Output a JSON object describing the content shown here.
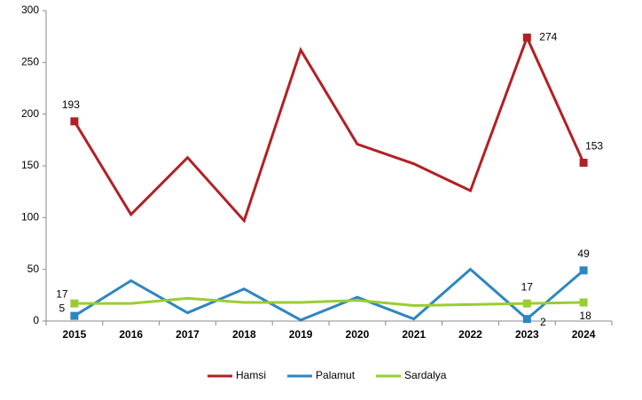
{
  "chart_data": {
    "type": "line",
    "categories": [
      "2015",
      "2016",
      "2017",
      "2018",
      "2019",
      "2020",
      "2021",
      "2022",
      "2023",
      "2024"
    ],
    "series": [
      {
        "name": "Hamsi",
        "color": "#b22024",
        "values": [
          193,
          103,
          158,
          97,
          262,
          171,
          152,
          126,
          274,
          153
        ],
        "marked_points": [
          0,
          8,
          9
        ]
      },
      {
        "name": "Palamut",
        "color": "#2e86c1",
        "values": [
          5,
          39,
          8,
          31,
          1,
          23,
          2,
          50,
          2,
          49
        ],
        "marked_points": [
          0,
          8,
          9
        ]
      },
      {
        "name": "Sardalya",
        "color": "#9acd32",
        "values": [
          17,
          17,
          22,
          18,
          18,
          20,
          15,
          16,
          17,
          18
        ],
        "marked_points": [
          0,
          8,
          9
        ]
      }
    ],
    "ylim": [
      0,
      300
    ],
    "yticks": [
      0,
      50,
      100,
      150,
      200,
      250,
      300
    ],
    "grid": false,
    "legend": "bottom"
  }
}
